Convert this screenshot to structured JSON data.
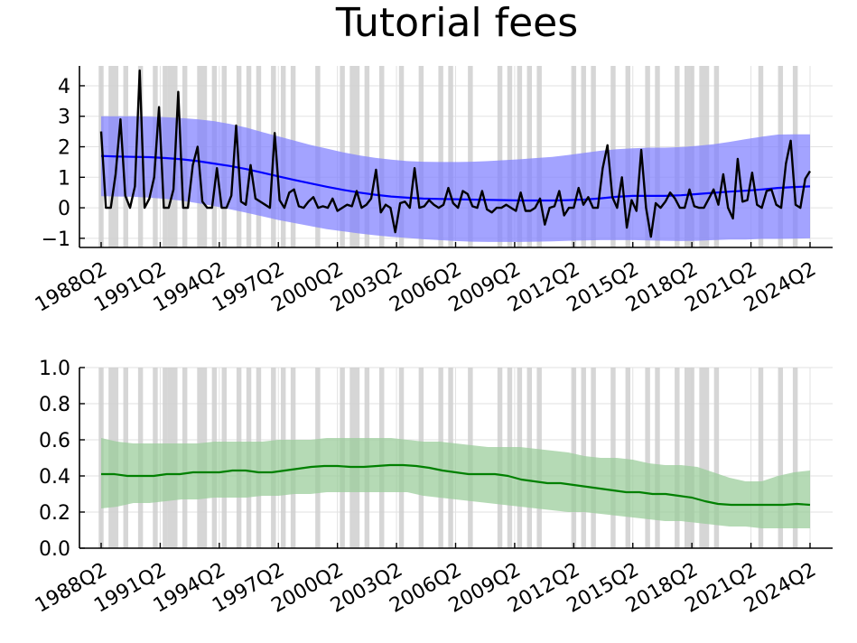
{
  "chart_data": [
    {
      "type": "line",
      "title": "Tutorial fees",
      "xlabel": "",
      "ylabel": "",
      "x_ticks": [
        "1988Q2",
        "1991Q2",
        "1994Q2",
        "1997Q2",
        "2000Q2",
        "2003Q2",
        "2006Q2",
        "2009Q2",
        "2012Q2",
        "2015Q2",
        "2018Q2",
        "2021Q2",
        "2024Q2"
      ],
      "y_ticks": [
        -1,
        0,
        1,
        2,
        3,
        4
      ],
      "ylim": [
        -1.3,
        4.65
      ],
      "x_range": [
        "1988Q2",
        "2024Q2"
      ],
      "grid": true,
      "legend": "none",
      "shaded_periods_color": "#cfcfcf",
      "series": [
        {
          "kind": "band",
          "color": "#8080ff",
          "upper": [
            3.0,
            3.0,
            3.0,
            2.99,
            2.97,
            2.94,
            2.9,
            2.84,
            2.75,
            2.63,
            2.48,
            2.34,
            2.2,
            2.06,
            1.94,
            1.82,
            1.72,
            1.64,
            1.58,
            1.53,
            1.51,
            1.5,
            1.5,
            1.51,
            1.53,
            1.56,
            1.59,
            1.63,
            1.67,
            1.73,
            1.8,
            1.87,
            1.92,
            1.95,
            1.97,
            1.97,
            1.99,
            2.03,
            2.08,
            2.16,
            2.25,
            2.33,
            2.4,
            2.41,
            2.41
          ],
          "lower": [
            0.38,
            0.37,
            0.36,
            0.33,
            0.29,
            0.23,
            0.15,
            0.06,
            -0.05,
            -0.16,
            -0.28,
            -0.4,
            -0.5,
            -0.6,
            -0.7,
            -0.77,
            -0.84,
            -0.9,
            -0.95,
            -0.99,
            -1.03,
            -1.06,
            -1.09,
            -1.11,
            -1.12,
            -1.12,
            -1.12,
            -1.11,
            -1.1,
            -1.08,
            -1.07,
            -1.06,
            -1.06,
            -1.06,
            -1.07,
            -1.08,
            -1.09,
            -1.08,
            -1.06,
            -1.04,
            -1.04,
            -1.02,
            -1.02,
            -1.01,
            -1.0
          ]
        },
        {
          "kind": "line",
          "color": "#0000ff",
          "values": [
            1.7,
            1.68,
            1.67,
            1.66,
            1.63,
            1.59,
            1.53,
            1.45,
            1.37,
            1.27,
            1.15,
            1.03,
            0.91,
            0.8,
            0.69,
            0.59,
            0.5,
            0.43,
            0.37,
            0.33,
            0.3,
            0.29,
            0.28,
            0.27,
            0.26,
            0.25,
            0.24,
            0.24,
            0.24,
            0.25,
            0.27,
            0.31,
            0.36,
            0.39,
            0.39,
            0.39,
            0.41,
            0.45,
            0.49,
            0.53,
            0.56,
            0.6,
            0.65,
            0.68,
            0.7
          ]
        },
        {
          "kind": "line",
          "color": "#000000",
          "values": [
            2.5,
            0.0,
            0.0,
            1.1,
            2.9,
            0.4,
            0.0,
            0.7,
            4.5,
            0.0,
            0.3,
            1.0,
            3.3,
            0.0,
            0.0,
            0.6,
            3.8,
            0.0,
            0.0,
            1.4,
            2.0,
            0.2,
            0.0,
            0.0,
            1.3,
            0.0,
            0.0,
            0.4,
            2.7,
            0.2,
            0.1,
            1.4,
            0.3,
            0.2,
            0.1,
            0.0,
            2.45,
            0.25,
            0.0,
            0.5,
            0.6,
            0.05,
            0.0,
            0.2,
            0.35,
            0.0,
            0.05,
            0.0,
            0.3,
            -0.1,
            0.0,
            0.1,
            0.05,
            0.55,
            0.0,
            0.1,
            0.3,
            1.25,
            -0.15,
            0.1,
            0.0,
            -0.8,
            0.15,
            0.2,
            0.0,
            1.3,
            0.0,
            0.05,
            0.25,
            0.1,
            0.0,
            0.1,
            0.65,
            0.15,
            0.0,
            0.55,
            0.45,
            0.05,
            0.0,
            0.55,
            -0.05,
            -0.15,
            0.0,
            0.0,
            0.1,
            0.0,
            -0.1,
            0.5,
            -0.1,
            -0.1,
            0.0,
            0.3,
            -0.55,
            0.0,
            0.05,
            0.55,
            -0.25,
            0.0,
            0.0,
            0.65,
            0.1,
            0.35,
            0.0,
            0.0,
            1.3,
            2.05,
            0.35,
            0.0,
            1.0,
            -0.65,
            0.25,
            -0.1,
            1.9,
            0.0,
            -0.95,
            0.15,
            0.0,
            0.2,
            0.5,
            0.3,
            0.0,
            0.0,
            0.6,
            0.05,
            0.0,
            0.0,
            0.3,
            0.6,
            0.1,
            1.1,
            0.0,
            -0.35,
            1.6,
            0.2,
            0.25,
            1.15,
            0.1,
            0.0,
            0.55,
            0.6,
            0.1,
            0.0,
            1.45,
            2.2,
            0.1,
            0.0,
            0.95,
            1.2
          ]
        }
      ]
    },
    {
      "type": "line",
      "title": "",
      "xlabel": "",
      "ylabel": "",
      "x_ticks": [
        "1988Q2",
        "1991Q2",
        "1994Q2",
        "1997Q2",
        "2000Q2",
        "2003Q2",
        "2006Q2",
        "2009Q2",
        "2012Q2",
        "2015Q2",
        "2018Q2",
        "2021Q2",
        "2024Q2"
      ],
      "y_ticks": [
        0.0,
        0.2,
        0.4,
        0.6,
        0.8,
        1.0
      ],
      "y_tick_labels": [
        "0.0",
        "0.2",
        "0.4",
        "0.6",
        "0.8",
        "1.0"
      ],
      "ylim": [
        0.0,
        1.0
      ],
      "x_range": [
        "1988Q2",
        "2024Q2"
      ],
      "grid": true,
      "legend": "none",
      "shaded_periods_color": "#cfcfcf",
      "series": [
        {
          "kind": "band",
          "color": "#99cc99",
          "upper": [
            0.61,
            0.59,
            0.58,
            0.58,
            0.58,
            0.58,
            0.58,
            0.59,
            0.59,
            0.59,
            0.59,
            0.6,
            0.6,
            0.6,
            0.61,
            0.61,
            0.61,
            0.61,
            0.61,
            0.6,
            0.59,
            0.59,
            0.58,
            0.57,
            0.56,
            0.56,
            0.56,
            0.55,
            0.54,
            0.53,
            0.51,
            0.5,
            0.5,
            0.49,
            0.47,
            0.46,
            0.46,
            0.45,
            0.42,
            0.39,
            0.37,
            0.37,
            0.4,
            0.42,
            0.43
          ],
          "lower": [
            0.22,
            0.23,
            0.25,
            0.25,
            0.26,
            0.27,
            0.27,
            0.28,
            0.28,
            0.28,
            0.29,
            0.29,
            0.3,
            0.3,
            0.31,
            0.31,
            0.31,
            0.31,
            0.31,
            0.31,
            0.29,
            0.28,
            0.27,
            0.26,
            0.25,
            0.24,
            0.23,
            0.22,
            0.21,
            0.2,
            0.2,
            0.19,
            0.18,
            0.17,
            0.16,
            0.15,
            0.15,
            0.14,
            0.13,
            0.12,
            0.12,
            0.11,
            0.11,
            0.11,
            0.11
          ]
        },
        {
          "kind": "line",
          "color": "#008000",
          "values": [
            0.41,
            0.41,
            0.4,
            0.4,
            0.4,
            0.41,
            0.41,
            0.42,
            0.42,
            0.42,
            0.43,
            0.43,
            0.42,
            0.42,
            0.43,
            0.44,
            0.45,
            0.455,
            0.455,
            0.45,
            0.45,
            0.455,
            0.46,
            0.46,
            0.455,
            0.445,
            0.43,
            0.42,
            0.41,
            0.41,
            0.41,
            0.4,
            0.38,
            0.37,
            0.36,
            0.36,
            0.35,
            0.34,
            0.33,
            0.32,
            0.31,
            0.31,
            0.3,
            0.3,
            0.29,
            0.28,
            0.26,
            0.245,
            0.24,
            0.24,
            0.24,
            0.24,
            0.24,
            0.245,
            0.24
          ]
        }
      ]
    }
  ],
  "shaded_periods": [
    [
      "1988Q2",
      "1988Q2"
    ],
    [
      "1988Q4",
      "1989Q1"
    ],
    [
      "1989Q3",
      "1989Q3"
    ],
    [
      "1990Q2",
      "1990Q2"
    ],
    [
      "1991Q1",
      "1991Q1"
    ],
    [
      "1991Q3",
      "1991Q3"
    ],
    [
      "1991Q4",
      "1992Q1"
    ],
    [
      "1992Q3",
      "1992Q3"
    ],
    [
      "1993Q2",
      "1993Q3"
    ],
    [
      "1994Q1",
      "1994Q1"
    ],
    [
      "1994Q3",
      "1994Q3"
    ],
    [
      "1995Q2",
      "1995Q2"
    ],
    [
      "1995Q4",
      "1995Q4"
    ],
    [
      "1996Q2",
      "1996Q2"
    ],
    [
      "1997Q1",
      "1997Q1"
    ],
    [
      "1997Q3",
      "1997Q3"
    ],
    [
      "1998Q1",
      "1998Q1"
    ],
    [
      "1999Q2",
      "1999Q2"
    ],
    [
      "2000Q3",
      "2000Q3"
    ],
    [
      "2001Q1",
      "2001Q2"
    ],
    [
      "2001Q4",
      "2001Q4"
    ],
    [
      "2002Q3",
      "2002Q3"
    ],
    [
      "2003Q3",
      "2003Q3"
    ],
    [
      "2004Q3",
      "2004Q3"
    ],
    [
      "2005Q3",
      "2005Q3"
    ],
    [
      "2006Q1",
      "2006Q1"
    ],
    [
      "2007Q1",
      "2007Q1"
    ],
    [
      "2008Q3",
      "2008Q3"
    ],
    [
      "2009Q1",
      "2009Q1"
    ],
    [
      "2009Q3",
      "2009Q3"
    ],
    [
      "2010Q1",
      "2010Q1"
    ],
    [
      "2010Q3",
      "2010Q3"
    ],
    [
      "2012Q2",
      "2012Q2"
    ],
    [
      "2012Q4",
      "2012Q4"
    ],
    [
      "2013Q2",
      "2013Q2"
    ],
    [
      "2014Q2",
      "2014Q2"
    ],
    [
      "2015Q1",
      "2015Q1"
    ],
    [
      "2016Q1",
      "2016Q1"
    ],
    [
      "2016Q3",
      "2016Q3"
    ],
    [
      "2017Q3",
      "2017Q3"
    ],
    [
      "2018Q1",
      "2018Q2"
    ],
    [
      "2018Q4",
      "2019Q1"
    ],
    [
      "2019Q3",
      "2019Q3"
    ],
    [
      "2021Q4",
      "2021Q4"
    ],
    [
      "2022Q4",
      "2022Q4"
    ],
    [
      "2023Q3",
      "2023Q3"
    ]
  ]
}
